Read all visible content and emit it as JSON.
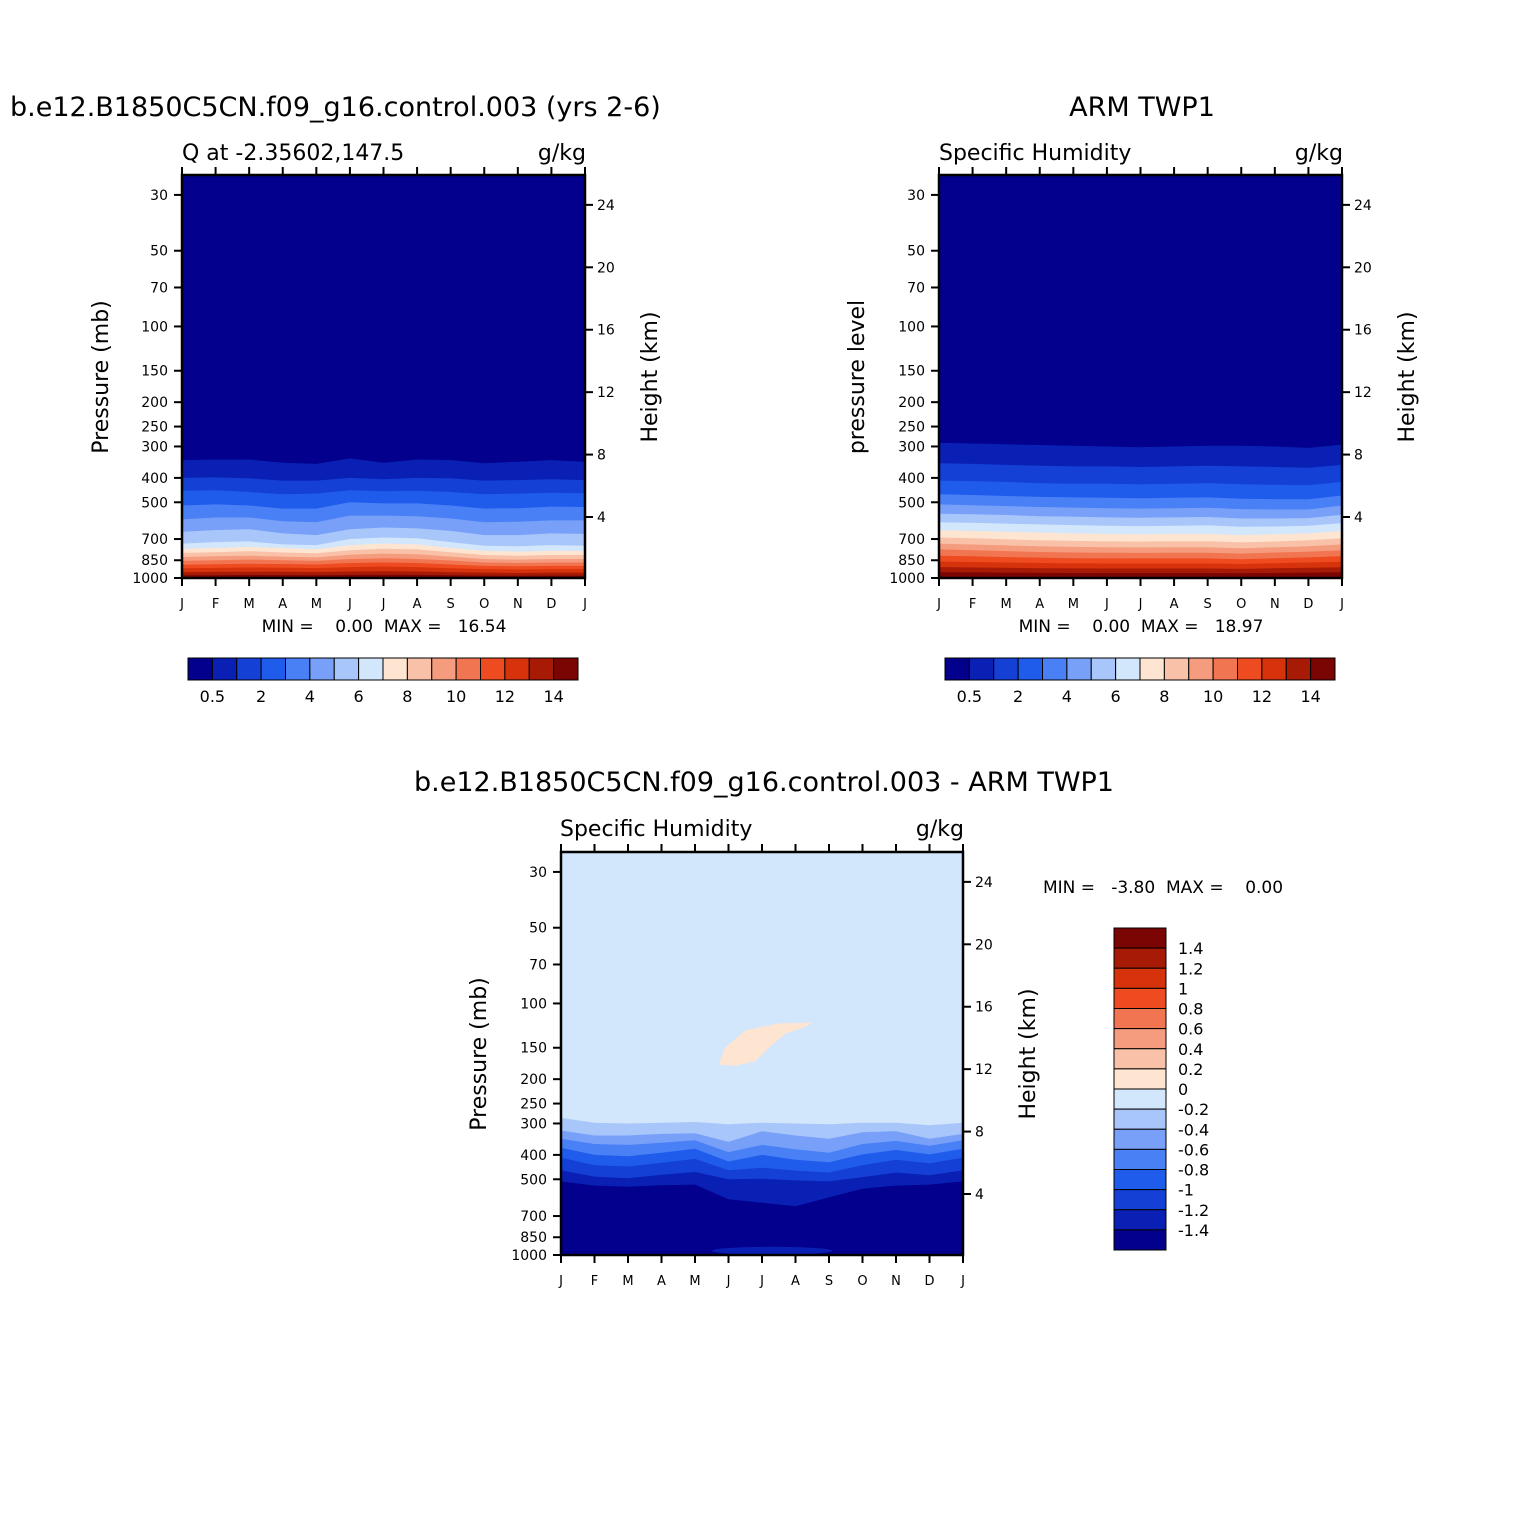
{
  "chart_data": [
    {
      "type": "heatmap",
      "subtype": "filled-contour pressure-time cross section",
      "title": "b.e12.B1850C5CN.f09_g16.control.003 (yrs 2-6)",
      "subtitle_left": "Q at -2.35602,147.5",
      "subtitle_right": "g/kg",
      "ylabel": "Pressure (mb)",
      "y2label": "Height (km)",
      "x_ticks": [
        "J",
        "F",
        "M",
        "A",
        "M",
        "J",
        "J",
        "A",
        "S",
        "O",
        "N",
        "D",
        "J"
      ],
      "y_ticks": [
        30,
        50,
        70,
        100,
        150,
        200,
        250,
        300,
        400,
        500,
        700,
        850,
        1000
      ],
      "y2_ticks": [
        4,
        8,
        12,
        16,
        20,
        24
      ],
      "y_scale": "log",
      "ylim": [
        1000,
        25
      ],
      "stats_text": "MIN =    0.00  MAX =   16.54",
      "levels": [
        0.5,
        1,
        2,
        3,
        4,
        5,
        6,
        7,
        8,
        9,
        10,
        11,
        12,
        13,
        14
      ],
      "colorbar_labels": [
        "0.5",
        "2",
        "4",
        "6",
        "8",
        "10",
        "12",
        "14"
      ],
      "boundaries_mb": [
        [
          340,
          338,
          338,
          348,
          352,
          335,
          348,
          338,
          340,
          350,
          345,
          340,
          345
        ],
        [
          400,
          398,
          402,
          410,
          410,
          400,
          405,
          400,
          402,
          410,
          408,
          405,
          408
        ],
        [
          450,
          448,
          455,
          465,
          462,
          448,
          452,
          450,
          455,
          465,
          462,
          458,
          460
        ],
        [
          515,
          510,
          515,
          530,
          530,
          500,
          505,
          505,
          515,
          530,
          528,
          520,
          522
        ],
        [
          585,
          575,
          575,
          595,
          600,
          565,
          565,
          568,
          580,
          600,
          598,
          590,
          590
        ],
        [
          655,
          645,
          640,
          665,
          675,
          640,
          630,
          635,
          650,
          675,
          675,
          665,
          668
        ],
        [
          730,
          720,
          715,
          735,
          740,
          700,
          690,
          695,
          720,
          745,
          748,
          740,
          745
        ],
        [
          765,
          760,
          752,
          760,
          770,
          740,
          730,
          735,
          760,
          780,
          785,
          780,
          780
        ],
        [
          795,
          790,
          782,
          792,
          798,
          775,
          765,
          770,
          790,
          810,
          815,
          810,
          810
        ],
        [
          825,
          820,
          815,
          822,
          828,
          808,
          800,
          805,
          822,
          840,
          845,
          840,
          840
        ],
        [
          855,
          850,
          845,
          850,
          855,
          840,
          835,
          840,
          852,
          868,
          872,
          868,
          868
        ],
        [
          885,
          882,
          878,
          880,
          884,
          872,
          868,
          872,
          884,
          895,
          898,
          895,
          895
        ],
        [
          915,
          912,
          908,
          910,
          913,
          905,
          900,
          905,
          915,
          922,
          925,
          922,
          922
        ],
        [
          948,
          946,
          944,
          945,
          947,
          942,
          940,
          942,
          948,
          952,
          955,
          952,
          952
        ],
        [
          975,
          975,
          972,
          974,
          975,
          972,
          970,
          972,
          975,
          978,
          980,
          978,
          978
        ]
      ]
    },
    {
      "type": "heatmap",
      "subtype": "filled-contour pressure-time cross section",
      "title": "ARM TWP1",
      "subtitle_left": "Specific Humidity",
      "subtitle_right": "g/kg",
      "ylabel": "pressure level",
      "y2label": "Height (km)",
      "x_ticks": [
        "J",
        "F",
        "M",
        "A",
        "M",
        "J",
        "J",
        "A",
        "S",
        "O",
        "N",
        "D",
        "J"
      ],
      "y_ticks": [
        30,
        50,
        70,
        100,
        150,
        200,
        250,
        300,
        400,
        500,
        700,
        850,
        1000
      ],
      "y2_ticks": [
        4,
        8,
        12,
        16,
        20,
        24
      ],
      "y_scale": "log",
      "ylim": [
        1000,
        25
      ],
      "stats_text": "MIN =    0.00  MAX =   18.97",
      "levels": [
        0.5,
        1,
        2,
        3,
        4,
        5,
        6,
        7,
        8,
        9,
        10,
        11,
        12,
        13,
        14
      ],
      "colorbar_labels": [
        "0.5",
        "2",
        "4",
        "6",
        "8",
        "10",
        "12",
        "14"
      ],
      "boundaries_mb": [
        [
          290,
          292,
          294,
          296,
          298,
          300,
          302,
          300,
          298,
          298,
          300,
          304,
          295
        ],
        [
          350,
          352,
          355,
          358,
          360,
          360,
          362,
          360,
          358,
          360,
          362,
          365,
          355
        ],
        [
          410,
          412,
          415,
          420,
          422,
          422,
          424,
          422,
          420,
          424,
          426,
          428,
          415
        ],
        [
          465,
          468,
          472,
          476,
          478,
          480,
          482,
          480,
          478,
          484,
          486,
          486,
          470
        ],
        [
          510,
          514,
          518,
          522,
          525,
          528,
          530,
          528,
          526,
          532,
          534,
          534,
          515
        ],
        [
          555,
          558,
          562,
          568,
          570,
          574,
          576,
          574,
          572,
          580,
          580,
          578,
          560
        ],
        [
          600,
          604,
          608,
          612,
          616,
          620,
          622,
          620,
          618,
          626,
          624,
          620,
          605
        ],
        [
          645,
          650,
          655,
          660,
          665,
          668,
          670,
          668,
          668,
          675,
          670,
          665,
          650
        ],
        [
          690,
          695,
          702,
          708,
          712,
          715,
          716,
          714,
          714,
          722,
          716,
          708,
          695
        ],
        [
          730,
          736,
          742,
          748,
          752,
          755,
          756,
          755,
          754,
          762,
          755,
          748,
          735
        ],
        [
          770,
          776,
          782,
          788,
          792,
          794,
          795,
          794,
          794,
          800,
          792,
          786,
          775
        ],
        [
          815,
          820,
          826,
          830,
          834,
          836,
          836,
          836,
          836,
          842,
          834,
          828,
          818
        ],
        [
          860,
          864,
          868,
          872,
          875,
          876,
          876,
          876,
          876,
          880,
          874,
          868,
          862
        ],
        [
          905,
          908,
          911,
          914,
          916,
          917,
          917,
          917,
          917,
          920,
          915,
          911,
          906
        ],
        [
          948,
          950,
          952,
          954,
          955,
          956,
          956,
          956,
          956,
          958,
          955,
          952,
          949
        ]
      ]
    },
    {
      "type": "heatmap",
      "subtype": "filled-contour difference",
      "title": "b.e12.B1850C5CN.f09_g16.control.003 - ARM TWP1",
      "subtitle_left": "Specific Humidity",
      "subtitle_right": "g/kg",
      "ylabel": "Pressure (mb)",
      "y2label": "Height (km)",
      "x_ticks": [
        "J",
        "F",
        "M",
        "A",
        "M",
        "J",
        "J",
        "A",
        "S",
        "O",
        "N",
        "D",
        "J"
      ],
      "y_ticks": [
        30,
        50,
        70,
        100,
        150,
        200,
        250,
        300,
        400,
        500,
        700,
        850,
        1000
      ],
      "y2_ticks": [
        4,
        8,
        12,
        16,
        20,
        24
      ],
      "y_scale": "log",
      "ylim": [
        1000,
        25
      ],
      "stats_text": "MIN =   -3.80  MAX =    0.00",
      "levels": [
        -1.4,
        -1.2,
        -1,
        -0.8,
        -0.6,
        -0.4,
        -0.2,
        0,
        0.2,
        0.4,
        0.6,
        0.8,
        1,
        1.2,
        1.4
      ],
      "colorbar_labels": [
        "1.4",
        "1.2",
        "1",
        "0.8",
        "0.6",
        "0.4",
        "0.2",
        "0",
        "-0.2",
        "-0.4",
        "-0.6",
        "-0.8",
        "-1",
        "-1.2",
        "-1.4"
      ],
      "background_level": "-0.2 to 0",
      "regions": [
        {
          "level": "-0.4 to -0.2",
          "upper_mb": [
            285,
            298,
            300,
            298,
            296,
            302,
            298,
            300,
            302,
            298,
            298,
            305,
            298
          ],
          "lower_mb": [
            920,
            920,
            920,
            920,
            920,
            920,
            920,
            920,
            920,
            920,
            920,
            920,
            920
          ]
        },
        {
          "level": "-0.6 to -0.4",
          "upper_mb": [
            320,
            335,
            335,
            330,
            328,
            355,
            322,
            335,
            345,
            325,
            322,
            345,
            330
          ],
          "lower_mb": [
            920,
            920,
            920,
            920,
            920,
            920,
            920,
            920,
            920,
            920,
            920,
            920,
            920
          ]
        },
        {
          "level": "-0.8 to -0.6",
          "upper_mb": [
            345,
            362,
            365,
            358,
            350,
            390,
            365,
            380,
            392,
            362,
            352,
            368,
            350
          ],
          "lower_mb": [
            920,
            920,
            920,
            920,
            920,
            920,
            920,
            920,
            920,
            920,
            920,
            920,
            920
          ]
        },
        {
          "level": "-1 to -0.8",
          "upper_mb": [
            375,
            400,
            405,
            392,
            378,
            425,
            400,
            418,
            428,
            398,
            382,
            398,
            378
          ],
          "lower_mb": [
            920,
            920,
            920,
            920,
            920,
            920,
            920,
            920,
            920,
            920,
            920,
            920,
            920
          ]
        },
        {
          "level": "-1.2 to -1",
          "upper_mb": [
            410,
            440,
            445,
            430,
            415,
            460,
            450,
            462,
            470,
            440,
            418,
            432,
            410
          ],
          "lower_mb": [
            920,
            920,
            920,
            920,
            920,
            920,
            920,
            920,
            920,
            920,
            920,
            920,
            920
          ]
        },
        {
          "level": "-1.4 to -1.2",
          "upper_mb": [
            460,
            488,
            495,
            480,
            468,
            500,
            498,
            505,
            510,
            490,
            470,
            482,
            460
          ],
          "lower_mb": [
            920,
            920,
            920,
            920,
            920,
            920,
            920,
            920,
            920,
            920,
            920,
            920,
            920
          ]
        },
        {
          "level": "< -1.4",
          "upper_mb": [
            510,
            530,
            535,
            528,
            525,
            600,
            620,
            640,
            590,
            545,
            530,
            525,
            510
          ],
          "lower_mb": [
            1000,
            1000,
            1000,
            1000,
            1000,
            1000,
            1000,
            1000,
            1000,
            1000,
            1000,
            1000,
            1000
          ]
        }
      ],
      "positive_patch": {
        "level": "0 to 0.2",
        "outline": [
          [
            4.7,
            175
          ],
          [
            4.9,
            150
          ],
          [
            5.5,
            128
          ],
          [
            6.5,
            120
          ],
          [
            7.5,
            119
          ],
          [
            7.3,
            124
          ],
          [
            6.7,
            132
          ],
          [
            6.2,
            150
          ],
          [
            5.8,
            170
          ],
          [
            5.2,
            177
          ]
        ]
      }
    }
  ],
  "colors": {
    "q_scale": [
      "#02008c",
      "#0a20b4",
      "#1440d6",
      "#1f5cec",
      "#4a80f5",
      "#78a0f8",
      "#a8c6fa",
      "#d2e6fc",
      "#fde5d2",
      "#f9c2a8",
      "#f59c7e",
      "#f27552",
      "#ee4b20",
      "#d6330d",
      "#a61a06",
      "#7a0502"
    ],
    "diff_scale": [
      "#7a0502",
      "#a61a06",
      "#d6330d",
      "#ee4b20",
      "#f27552",
      "#f59c7e",
      "#f9c2a8",
      "#fde5d2",
      "#d2e6fc",
      "#a8c6fa",
      "#78a0f8",
      "#4a80f5",
      "#1f5cec",
      "#1440d6",
      "#0a20b4",
      "#02008c"
    ]
  }
}
